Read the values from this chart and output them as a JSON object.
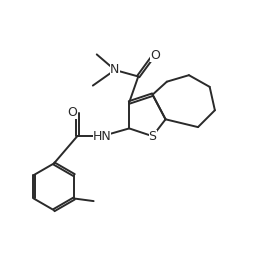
{
  "bg_color": "#ffffff",
  "line_color": "#2a2a2a",
  "line_width": 1.4,
  "text_color": "#2a2a2a",
  "font_size": 8.5,
  "figsize": [
    2.61,
    2.62
  ],
  "dpi": 100,
  "xlim": [
    0,
    10
  ],
  "ylim": [
    1.0,
    10.5
  ]
}
